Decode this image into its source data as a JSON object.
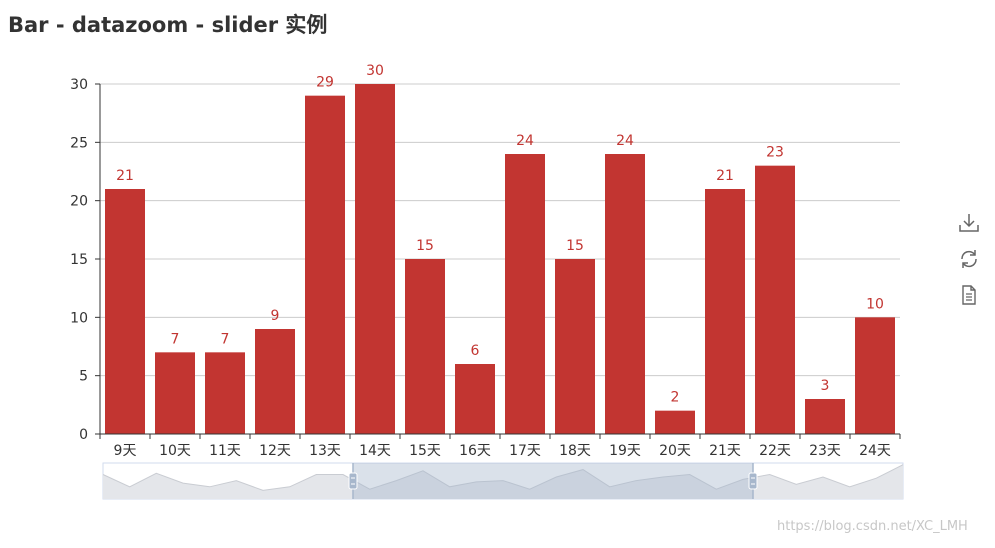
{
  "title": "Bar - datazoom - slider 实例",
  "watermark": "https://blog.csdn.net/XC_LMH",
  "toolbox": [
    "download-icon",
    "refresh-icon",
    "data-view-icon"
  ],
  "colors": {
    "bar": "#c23531",
    "axis": "#333333",
    "grid": "#cccccc",
    "label": "#c23531",
    "text": "#333333"
  },
  "chart_data": {
    "type": "bar",
    "title": "Bar - datazoom - slider 实例",
    "categories": [
      "9天",
      "10天",
      "11天",
      "12天",
      "13天",
      "14天",
      "15天",
      "16天",
      "17天",
      "18天",
      "19天",
      "20天",
      "21天",
      "22天",
      "23天",
      "24天"
    ],
    "values": [
      21,
      7,
      7,
      9,
      29,
      30,
      15,
      6,
      24,
      15,
      24,
      2,
      21,
      23,
      3,
      10
    ],
    "ylim": [
      0,
      30
    ],
    "yticks": [
      0,
      5,
      10,
      15,
      20,
      25,
      30
    ],
    "grid": true,
    "data_labels": true,
    "datazoom": {
      "type": "slider",
      "start_fraction": 0.3125,
      "end_fraction": 0.8125,
      "overview_values": [
        20,
        10,
        21,
        13,
        10,
        15,
        7,
        10,
        20,
        20,
        8,
        15,
        23,
        10,
        14,
        15,
        8,
        18,
        24,
        10,
        15,
        18,
        20,
        8,
        16,
        20,
        12,
        18,
        10,
        17,
        28
      ]
    }
  }
}
